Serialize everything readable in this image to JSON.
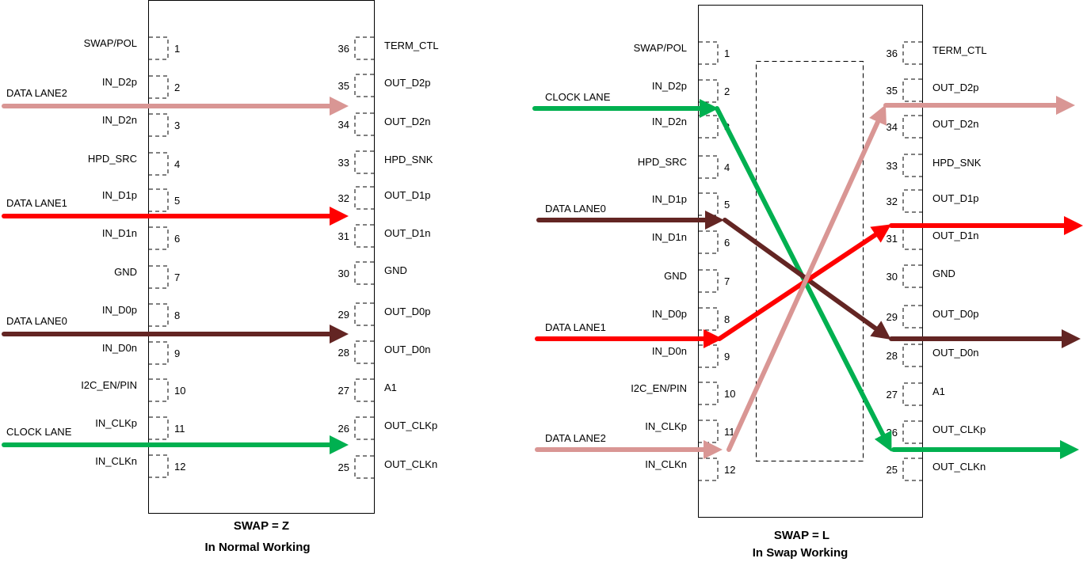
{
  "colors": {
    "data_lane2": "#d99694",
    "data_lane1": "#ff0000",
    "data_lane0": "#632523",
    "clock_lane": "#00b050"
  },
  "normal": {
    "caption1": "SWAP = Z",
    "caption2": "In Normal Working",
    "left_pins": [
      [
        "SWAP/POL",
        "1"
      ],
      [
        "IN_D2p",
        "2"
      ],
      [
        "IN_D2n",
        "3"
      ],
      [
        "HPD_SRC",
        "4"
      ],
      [
        "IN_D1p",
        "5"
      ],
      [
        "IN_D1n",
        "6"
      ],
      [
        "GND",
        "7"
      ],
      [
        "IN_D0p",
        "8"
      ],
      [
        "IN_D0n",
        "9"
      ],
      [
        "I2C_EN/PIN",
        "10"
      ],
      [
        "IN_CLKp",
        "11"
      ],
      [
        "IN_CLKn",
        "12"
      ]
    ],
    "right_pins": [
      [
        "TERM_CTL",
        "36"
      ],
      [
        "OUT_D2p",
        "35"
      ],
      [
        "OUT_D2n",
        "34"
      ],
      [
        "HPD_SNK",
        "33"
      ],
      [
        "OUT_D1p",
        "32"
      ],
      [
        "OUT_D1n",
        "31"
      ],
      [
        "GND",
        "30"
      ],
      [
        "OUT_D0p",
        "29"
      ],
      [
        "OUT_D0n",
        "28"
      ],
      [
        "A1",
        "27"
      ],
      [
        "OUT_CLKp",
        "26"
      ],
      [
        "OUT_CLKn",
        "25"
      ]
    ],
    "lanes": [
      {
        "label": "DATA LANE2",
        "color": "data_lane2"
      },
      {
        "label": "DATA LANE1",
        "color": "data_lane1"
      },
      {
        "label": "DATA LANE0",
        "color": "data_lane0"
      },
      {
        "label": "CLOCK LANE",
        "color": "clock_lane"
      }
    ]
  },
  "swap": {
    "caption1": "SWAP = L",
    "caption2": "In Swap Working",
    "left_pins": [
      [
        "SWAP/POL",
        "1"
      ],
      [
        "IN_D2p",
        "2"
      ],
      [
        "IN_D2n",
        "3"
      ],
      [
        "HPD_SRC",
        "4"
      ],
      [
        "IN_D1p",
        "5"
      ],
      [
        "IN_D1n",
        "6"
      ],
      [
        "GND",
        "7"
      ],
      [
        "IN_D0p",
        "8"
      ],
      [
        "IN_D0n",
        "9"
      ],
      [
        "I2C_EN/PIN",
        "10"
      ],
      [
        "IN_CLKp",
        "11"
      ],
      [
        "IN_CLKn",
        "12"
      ]
    ],
    "right_pins": [
      [
        "TERM_CTL",
        "36"
      ],
      [
        "OUT_D2p",
        "35"
      ],
      [
        "OUT_D2n",
        "34"
      ],
      [
        "HPD_SNK",
        "33"
      ],
      [
        "OUT_D1p",
        "32"
      ],
      [
        "OUT_D1n",
        "31"
      ],
      [
        "GND",
        "30"
      ],
      [
        "OUT_D0p",
        "29"
      ],
      [
        "OUT_D0n",
        "28"
      ],
      [
        "A1",
        "27"
      ],
      [
        "OUT_CLKp",
        "26"
      ],
      [
        "OUT_CLKn",
        "25"
      ]
    ],
    "lanes": [
      {
        "label": "CLOCK LANE",
        "color": "clock_lane"
      },
      {
        "label": "DATA LANE0",
        "color": "data_lane0"
      },
      {
        "label": "DATA LANE1",
        "color": "data_lane1"
      },
      {
        "label": "DATA LANE2",
        "color": "data_lane2"
      }
    ]
  }
}
